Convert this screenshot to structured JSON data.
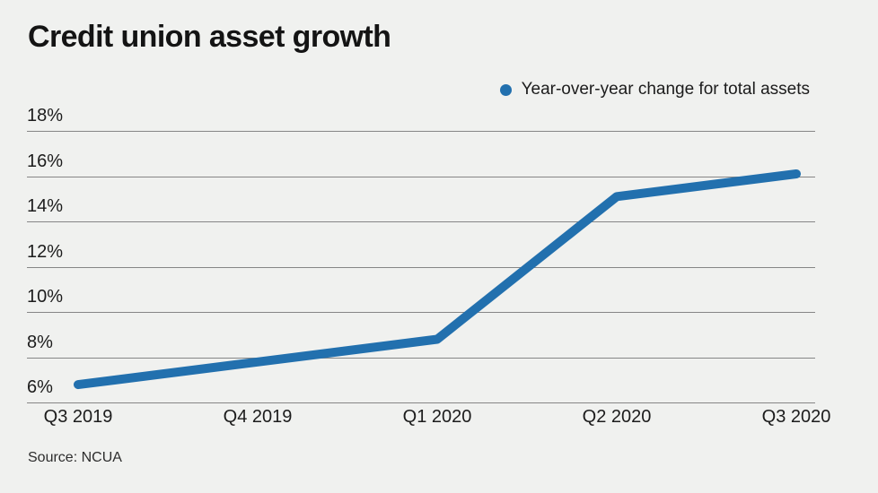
{
  "title": "Credit union asset growth",
  "legend": {
    "label": "Year-over-year change for total assets",
    "marker_color": "#2270ae"
  },
  "source": "Source: NCUA",
  "colors": {
    "background": "#f0f1ef",
    "line": "#2270ae",
    "grid": "#868686",
    "text": "#1c1c1c"
  },
  "chart_data": {
    "type": "line",
    "categories": [
      "Q3 2019",
      "Q4 2019",
      "Q1 2020",
      "Q2 2020",
      "Q3 2020"
    ],
    "series": [
      {
        "name": "Year-over-year change for total assets",
        "values": [
          6.8,
          7.8,
          8.8,
          15.1,
          16.1
        ]
      }
    ],
    "y_ticks": [
      6,
      8,
      10,
      12,
      14,
      16,
      18
    ],
    "y_tick_suffix": "%",
    "ylim": [
      6,
      18
    ],
    "grid": true,
    "legend_position": "top-right",
    "title": "Credit union asset growth",
    "xlabel": "",
    "ylabel": ""
  }
}
